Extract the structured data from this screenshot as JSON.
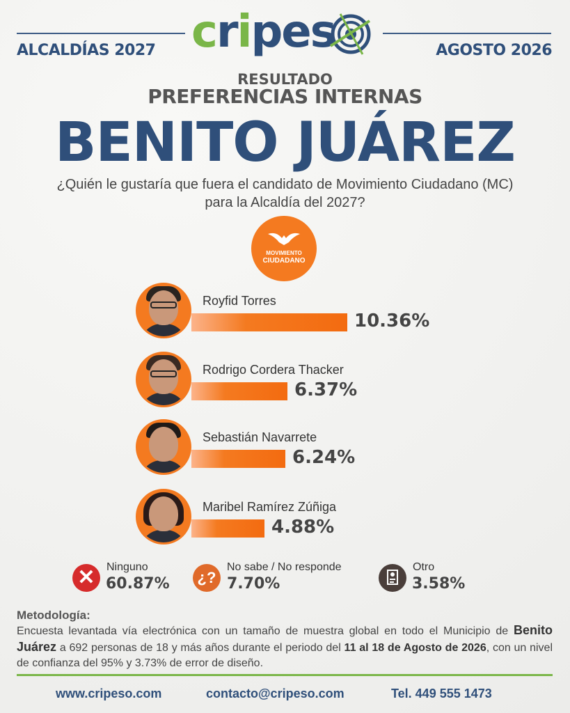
{
  "header": {
    "logo_part1": "cripes",
    "left_label": "ALCALDÍAS 2027",
    "right_label": "AGOSTO 2026"
  },
  "subtitle1": "RESULTADO",
  "subtitle2": "PREFERENCIAS INTERNAS",
  "title": "BENITO JUÁREZ",
  "question_line1": "¿Quién le gustaría que fuera el candidato de Movimiento Ciudadano (MC)",
  "question_line2": "para la Alcaldía del 2027?",
  "party_badge": {
    "line1": "MOVIMIENTO",
    "line2": "CIUDADANO",
    "color": "#f47a20"
  },
  "colors": {
    "accent": "#f47a20",
    "navy": "#2f4f7a",
    "green": "#7ab648",
    "ninguno": "#d62b2b",
    "nosabe": "#e06a2a",
    "otro": "#4a3e3a"
  },
  "chart_data": {
    "type": "bar",
    "orientation": "horizontal",
    "categories": [
      "Royfid Torres",
      "Rodrigo Cordera Thacker",
      "Sebastián Navarrete",
      "Maribel Ramírez Zúñiga"
    ],
    "values": [
      10.36,
      6.37,
      6.24,
      4.88
    ],
    "value_labels": [
      "10.36%",
      "6.37%",
      "6.24%",
      "4.88%"
    ],
    "unit": "%"
  },
  "others": [
    {
      "label": "Ninguno",
      "value": "60.87%",
      "icon": "x-icon"
    },
    {
      "label": "No sabe / No responde",
      "value": "7.70%",
      "icon": "question-icon"
    },
    {
      "label": "Otro",
      "value": "3.58%",
      "icon": "ballot-icon"
    }
  ],
  "methodology": {
    "title": "Metodología:",
    "text1": "Encuesta levantada vía electrónica con un tamaño de muestra global en todo el Municipio de ",
    "bold1": "Benito Juárez",
    "text2": " a 692 personas de 18 y más años durante el periodo del ",
    "bold2": "11 al 18 de Agosto de 2026",
    "text3": ", con un nivel de confianza del 95% y 3.73% de error de diseño."
  },
  "footer": {
    "web": "www.cripeso.com",
    "email": "contacto@cripeso.com",
    "phone": "Tel. 449 555 1473"
  }
}
